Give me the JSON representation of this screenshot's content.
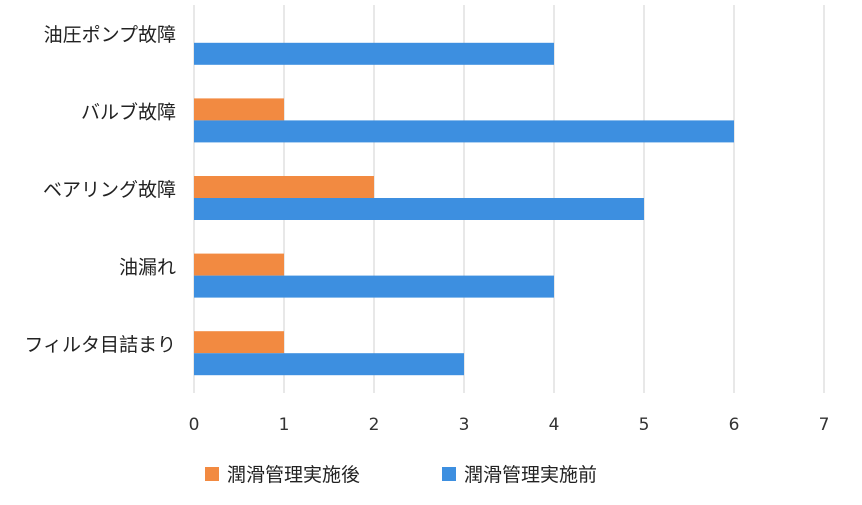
{
  "chart_data": {
    "type": "bar",
    "orientation": "horizontal",
    "categories": [
      "油圧ポンプ故障",
      "バルブ故障",
      "ベアリング故障",
      "油漏れ",
      "フィルタ目詰まり"
    ],
    "series": [
      {
        "name": "潤滑管理実施後",
        "values": [
          0,
          1,
          2,
          1,
          1
        ],
        "color": "#F28A41"
      },
      {
        "name": "潤滑管理実施前",
        "values": [
          4,
          6,
          5,
          4,
          3
        ],
        "color": "#3D8FE0"
      }
    ],
    "x_ticks": [
      "0",
      "1",
      "2",
      "3",
      "4",
      "5",
      "6",
      "7"
    ],
    "xlim": [
      0,
      7
    ],
    "grid": "vertical",
    "legend": "bottom"
  }
}
